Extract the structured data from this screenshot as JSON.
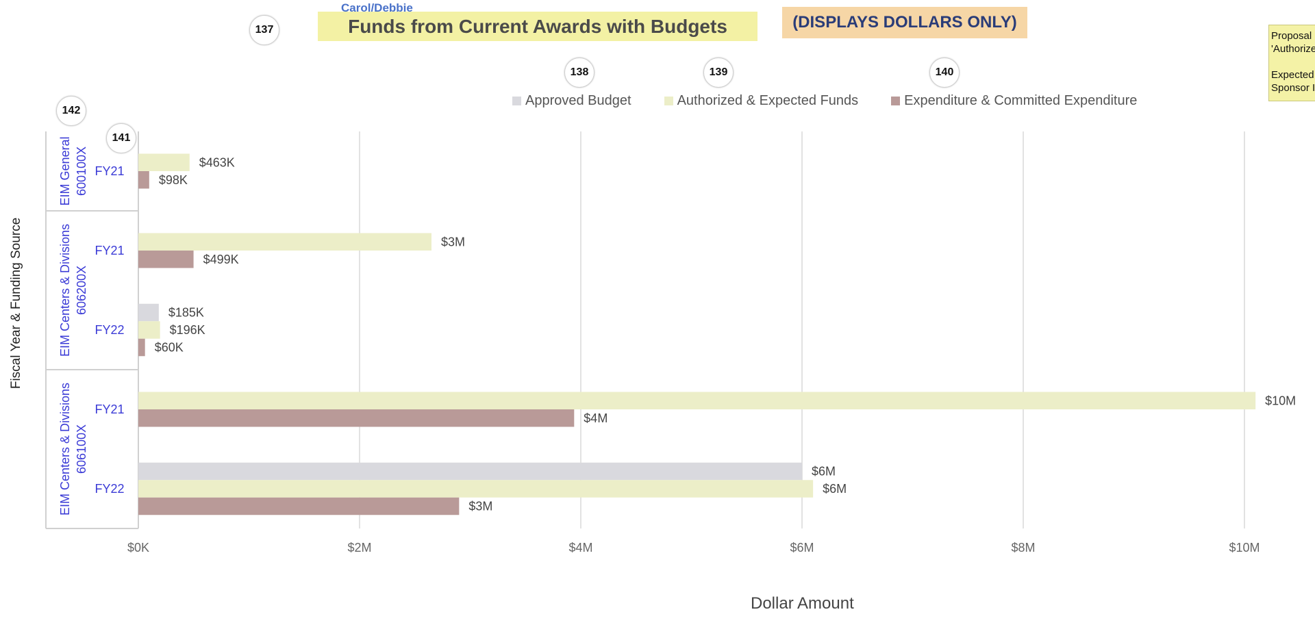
{
  "header": {
    "cut_label": "Carol/Debbie",
    "title": "Funds from Current Awards with Budgets",
    "note": "(DISPLAYS DOLLARS ONLY)",
    "side_note_lines": [
      "Proposal",
      "'Authorize",
      "",
      "Expected",
      "Sponsor I"
    ]
  },
  "badges": [
    "137",
    "138",
    "139",
    "140",
    "141",
    "142"
  ],
  "colors": {
    "approved": "#d9d9de",
    "authorized": "#eceec8",
    "expenditure": "#b99a98",
    "group_label": "#3a3ad6",
    "gridline": "#d9d9d9"
  },
  "chart_data": {
    "type": "bar",
    "orientation": "horizontal",
    "title": "Funds from Current Awards with Budgets",
    "xlabel": "Dollar Amount",
    "ylabel": "Fiscal Year & Funding Source",
    "xlim": [
      0,
      10000000
    ],
    "x_ticks": [
      {
        "value": 0,
        "label": "$0K"
      },
      {
        "value": 2000000,
        "label": "$2M"
      },
      {
        "value": 4000000,
        "label": "$4M"
      },
      {
        "value": 6000000,
        "label": "$6M"
      },
      {
        "value": 8000000,
        "label": "$8M"
      },
      {
        "value": 10000000,
        "label": "$10M"
      }
    ],
    "legend_position": "top",
    "series": [
      {
        "name": "Approved Budget",
        "key": "approved"
      },
      {
        "name": "Authorized & Expected Funds",
        "key": "authorized"
      },
      {
        "name": "Expenditure & Committed Expenditure",
        "key": "expenditure"
      }
    ],
    "groups": [
      {
        "source": [
          "EIM General",
          "600100X"
        ],
        "years": [
          {
            "fy": "FY21",
            "bars": [
              {
                "series": "authorized",
                "value": 463000,
                "label": "$463K"
              },
              {
                "series": "expenditure",
                "value": 98000,
                "label": "$98K"
              }
            ]
          }
        ]
      },
      {
        "source": [
          "EIM Centers & Divisions",
          "606200X"
        ],
        "years": [
          {
            "fy": "FY21",
            "bars": [
              {
                "series": "authorized",
                "value": 2650000,
                "label": "$3M"
              },
              {
                "series": "expenditure",
                "value": 499000,
                "label": "$499K"
              }
            ]
          },
          {
            "fy": "FY22",
            "bars": [
              {
                "series": "approved",
                "value": 185000,
                "label": "$185K"
              },
              {
                "series": "authorized",
                "value": 196000,
                "label": "$196K"
              },
              {
                "series": "expenditure",
                "value": 60000,
                "label": "$60K"
              }
            ]
          }
        ]
      },
      {
        "source": [
          "EIM Centers & Divisions",
          "606100X"
        ],
        "years": [
          {
            "fy": "FY21",
            "bars": [
              {
                "series": "authorized",
                "value": 10100000,
                "label": "$10M"
              },
              {
                "series": "expenditure",
                "value": 3940000,
                "label": "$4M"
              }
            ]
          },
          {
            "fy": "FY22",
            "bars": [
              {
                "series": "approved",
                "value": 6000000,
                "label": "$6M"
              },
              {
                "series": "authorized",
                "value": 6100000,
                "label": "$6M"
              },
              {
                "series": "expenditure",
                "value": 2900000,
                "label": "$3M"
              }
            ]
          }
        ]
      }
    ]
  }
}
